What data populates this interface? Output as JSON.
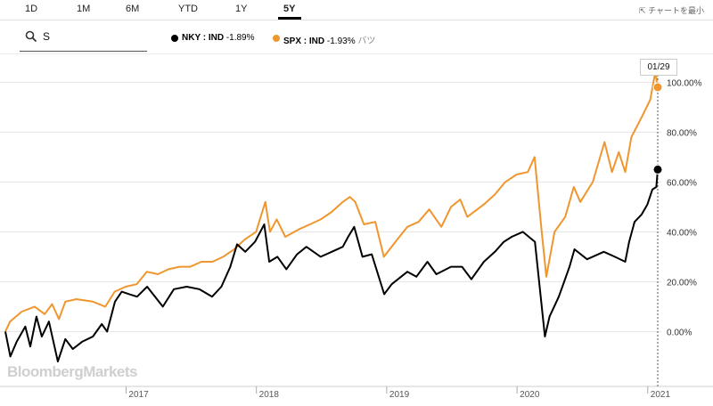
{
  "tabs": [
    {
      "label": "1D",
      "active": false
    },
    {
      "label": "1M",
      "active": false
    },
    {
      "label": "6M",
      "active": false
    },
    {
      "label": "YTD",
      "active": false
    },
    {
      "label": "1Y",
      "active": false
    },
    {
      "label": "5Y",
      "active": true
    }
  ],
  "minimize_label": "チャートを最小",
  "search": {
    "value": "S"
  },
  "legend": [
    {
      "label": "NKY : IND",
      "change": "-1.89%",
      "color": "#000000",
      "extra": ""
    },
    {
      "label": "SPX : IND",
      "change": "-1.93%",
      "color": "#f0962f",
      "extra": "バツ"
    }
  ],
  "date_tag": "01/29",
  "watermark": "BloombergMarkets",
  "colors": {
    "nky": "#000000",
    "spx": "#f0962f",
    "grid": "#e5e5e5"
  },
  "chart_data": {
    "type": "line",
    "x_range": [
      "2016-01-29",
      "2021-01-29"
    ],
    "x_ticks": [
      "2017",
      "2018",
      "2019",
      "2020",
      "2021"
    ],
    "y_ticks": [
      "0.00%",
      "20.00%",
      "40.00%",
      "60.00%",
      "80.00%",
      "100.00%"
    ],
    "ylim": [
      -22,
      108
    ],
    "series": [
      {
        "name": "NKY : IND",
        "color": "#000000",
        "last": 65,
        "points": [
          [
            "2016-01-29",
            0
          ],
          [
            "2016-02-12",
            -10
          ],
          [
            "2016-03-01",
            -4
          ],
          [
            "2016-03-25",
            2
          ],
          [
            "2016-04-08",
            -6
          ],
          [
            "2016-04-25",
            6
          ],
          [
            "2016-05-10",
            -2
          ],
          [
            "2016-05-30",
            4
          ],
          [
            "2016-06-24",
            -12
          ],
          [
            "2016-07-15",
            -3
          ],
          [
            "2016-08-05",
            -7
          ],
          [
            "2016-09-01",
            -4
          ],
          [
            "2016-09-30",
            -2
          ],
          [
            "2016-10-25",
            3
          ],
          [
            "2016-11-09",
            0
          ],
          [
            "2016-12-01",
            12
          ],
          [
            "2016-12-20",
            16
          ],
          [
            "2017-01-10",
            15
          ],
          [
            "2017-02-01",
            14
          ],
          [
            "2017-03-01",
            18
          ],
          [
            "2017-04-14",
            10
          ],
          [
            "2017-05-15",
            17
          ],
          [
            "2017-06-20",
            18
          ],
          [
            "2017-07-25",
            17
          ],
          [
            "2017-08-30",
            14
          ],
          [
            "2017-09-25",
            18
          ],
          [
            "2017-10-20",
            26
          ],
          [
            "2017-11-08",
            35
          ],
          [
            "2017-12-01",
            32
          ],
          [
            "2017-12-28",
            36
          ],
          [
            "2018-01-23",
            43
          ],
          [
            "2018-02-06",
            28
          ],
          [
            "2018-03-01",
            30
          ],
          [
            "2018-03-26",
            25
          ],
          [
            "2018-04-25",
            31
          ],
          [
            "2018-05-21",
            34
          ],
          [
            "2018-06-30",
            30
          ],
          [
            "2018-07-31",
            32
          ],
          [
            "2018-08-31",
            34
          ],
          [
            "2018-09-15",
            38
          ],
          [
            "2018-10-02",
            42
          ],
          [
            "2018-10-25",
            30
          ],
          [
            "2018-11-20",
            31
          ],
          [
            "2018-12-25",
            15
          ],
          [
            "2019-01-15",
            19
          ],
          [
            "2019-02-28",
            24
          ],
          [
            "2019-03-25",
            22
          ],
          [
            "2019-04-25",
            28
          ],
          [
            "2019-05-20",
            23
          ],
          [
            "2019-06-30",
            26
          ],
          [
            "2019-07-31",
            26
          ],
          [
            "2019-08-26",
            21
          ],
          [
            "2019-09-30",
            28
          ],
          [
            "2019-10-31",
            32
          ],
          [
            "2019-11-25",
            36
          ],
          [
            "2019-12-17",
            38
          ],
          [
            "2020-01-17",
            40
          ],
          [
            "2020-02-20",
            36
          ],
          [
            "2020-03-19",
            -2
          ],
          [
            "2020-04-01",
            6
          ],
          [
            "2020-04-27",
            14
          ],
          [
            "2020-05-27",
            26
          ],
          [
            "2020-06-10",
            33
          ],
          [
            "2020-07-15",
            29
          ],
          [
            "2020-08-31",
            32
          ],
          [
            "2020-10-01",
            30
          ],
          [
            "2020-10-30",
            28
          ],
          [
            "2020-11-10",
            36
          ],
          [
            "2020-11-25",
            44
          ],
          [
            "2020-12-15",
            47
          ],
          [
            "2020-12-31",
            51
          ],
          [
            "2021-01-14",
            57
          ],
          [
            "2021-01-25",
            58
          ],
          [
            "2021-01-29",
            65
          ]
        ]
      },
      {
        "name": "SPX : IND",
        "color": "#f0962f",
        "last": 98,
        "points": [
          [
            "2016-01-29",
            0
          ],
          [
            "2016-02-11",
            4
          ],
          [
            "2016-03-15",
            8
          ],
          [
            "2016-04-20",
            10
          ],
          [
            "2016-05-18",
            7
          ],
          [
            "2016-06-08",
            11
          ],
          [
            "2016-06-27",
            5
          ],
          [
            "2016-07-15",
            12
          ],
          [
            "2016-08-15",
            13
          ],
          [
            "2016-09-30",
            12
          ],
          [
            "2016-11-04",
            10
          ],
          [
            "2016-11-30",
            16
          ],
          [
            "2016-12-31",
            18
          ],
          [
            "2017-01-31",
            19
          ],
          [
            "2017-02-28",
            24
          ],
          [
            "2017-03-31",
            23
          ],
          [
            "2017-04-30",
            25
          ],
          [
            "2017-05-31",
            26
          ],
          [
            "2017-06-30",
            26
          ],
          [
            "2017-07-31",
            28
          ],
          [
            "2017-08-31",
            28
          ],
          [
            "2017-09-30",
            30
          ],
          [
            "2017-10-31",
            33
          ],
          [
            "2017-11-30",
            37
          ],
          [
            "2017-12-31",
            40
          ],
          [
            "2018-01-26",
            52
          ],
          [
            "2018-02-08",
            40
          ],
          [
            "2018-02-27",
            45
          ],
          [
            "2018-03-23",
            38
          ],
          [
            "2018-04-30",
            41
          ],
          [
            "2018-05-31",
            43
          ],
          [
            "2018-06-30",
            45
          ],
          [
            "2018-07-31",
            48
          ],
          [
            "2018-08-31",
            52
          ],
          [
            "2018-09-20",
            54
          ],
          [
            "2018-10-05",
            52
          ],
          [
            "2018-10-29",
            43
          ],
          [
            "2018-11-30",
            44
          ],
          [
            "2018-12-24",
            30
          ],
          [
            "2019-01-31",
            37
          ],
          [
            "2019-02-28",
            42
          ],
          [
            "2019-03-31",
            44
          ],
          [
            "2019-04-30",
            49
          ],
          [
            "2019-06-03",
            42
          ],
          [
            "2019-06-30",
            50
          ],
          [
            "2019-07-26",
            53
          ],
          [
            "2019-08-15",
            46
          ],
          [
            "2019-09-30",
            51
          ],
          [
            "2019-10-31",
            55
          ],
          [
            "2019-11-29",
            60
          ],
          [
            "2019-12-31",
            63
          ],
          [
            "2020-01-31",
            64
          ],
          [
            "2020-02-19",
            70
          ],
          [
            "2020-03-10",
            40
          ],
          [
            "2020-03-23",
            22
          ],
          [
            "2020-04-15",
            40
          ],
          [
            "2020-05-15",
            46
          ],
          [
            "2020-06-08",
            58
          ],
          [
            "2020-06-26",
            52
          ],
          [
            "2020-07-31",
            60
          ],
          [
            "2020-09-02",
            76
          ],
          [
            "2020-09-23",
            64
          ],
          [
            "2020-10-12",
            72
          ],
          [
            "2020-10-30",
            64
          ],
          [
            "2020-11-16",
            78
          ],
          [
            "2020-12-15",
            86
          ],
          [
            "2021-01-08",
            93
          ],
          [
            "2021-01-22",
            104
          ],
          [
            "2021-01-29",
            98
          ]
        ]
      }
    ]
  }
}
